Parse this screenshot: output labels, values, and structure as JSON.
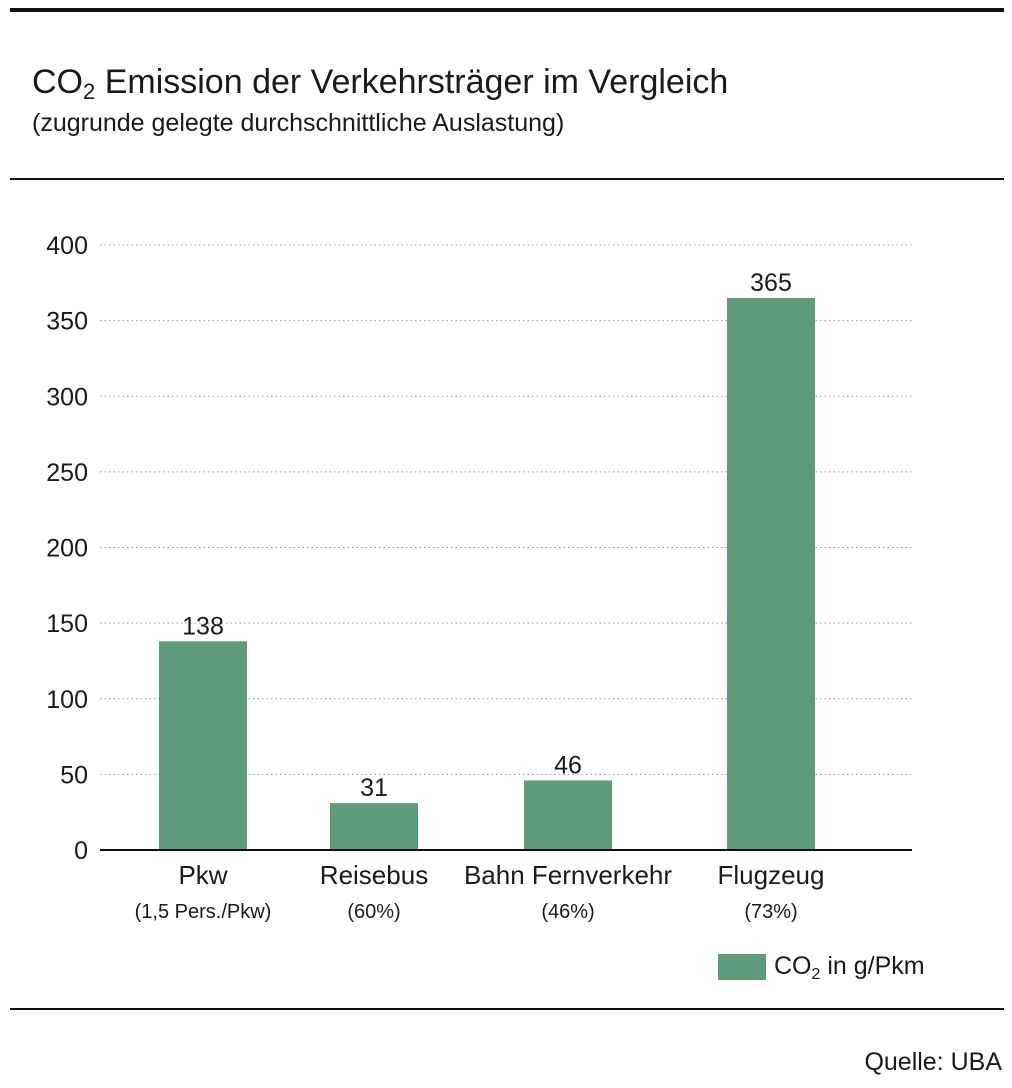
{
  "header": {
    "title_pre": "CO",
    "title_sub": "2",
    "title_post": " Emission der Verkehrsträger im Vergleich",
    "subtitle": "(zugrunde gelegte durchschnittliche Auslastung)"
  },
  "legend": {
    "label_pre": "CO",
    "label_sub": "2",
    "label_post": " in g/Pkm",
    "color": "#5f9a7d"
  },
  "source": "Quelle: UBA",
  "chart_data": {
    "type": "bar",
    "categories": [
      "Pkw",
      "Reisebus",
      "Bahn Fernverkehr",
      "Flugzeug"
    ],
    "category_notes": [
      "(1,5 Pers./Pkw)",
      "(60%)",
      "(46%)",
      "(73%)"
    ],
    "series": [
      {
        "name": "CO2 in g/Pkm",
        "values": [
          138,
          31,
          46,
          365
        ]
      }
    ],
    "data_labels": [
      "138",
      "31",
      "46",
      "365"
    ],
    "ylim": [
      0,
      400
    ],
    "yticks": [
      0,
      50,
      100,
      150,
      200,
      250,
      300,
      350,
      400
    ],
    "grid": true,
    "legend_position": "bottom-right",
    "bar_color": "#5f9a7d"
  }
}
